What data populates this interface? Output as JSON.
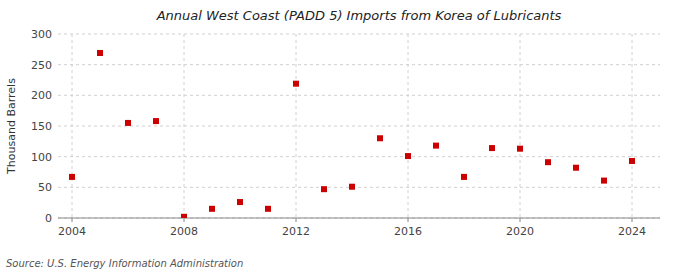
{
  "chart_data": {
    "type": "scatter",
    "title": "Annual West Coast (PADD 5) Imports from Korea of Lubricants",
    "ylabel": "Thousand Barrels",
    "annotations": [
      "Source: U.S. Energy Information Administration"
    ],
    "x": [
      2004,
      2005,
      2006,
      2007,
      2008,
      2009,
      2010,
      2011,
      2012,
      2013,
      2014,
      2015,
      2016,
      2017,
      2018,
      2019,
      2020,
      2021,
      2022,
      2023,
      2024
    ],
    "values": [
      67,
      269,
      155,
      158,
      2,
      15,
      26,
      15,
      219,
      47,
      51,
      130,
      101,
      118,
      67,
      114,
      113,
      91,
      82,
      61,
      93
    ],
    "color": "#cc0000",
    "marker": "square",
    "xlim": [
      2003.5,
      2025
    ],
    "xticks": [
      2004,
      2008,
      2012,
      2016,
      2020,
      2024
    ],
    "ylim": [
      0,
      300
    ],
    "yticks": [
      0,
      50,
      100,
      150,
      200,
      250,
      300
    ],
    "grid": true
  }
}
